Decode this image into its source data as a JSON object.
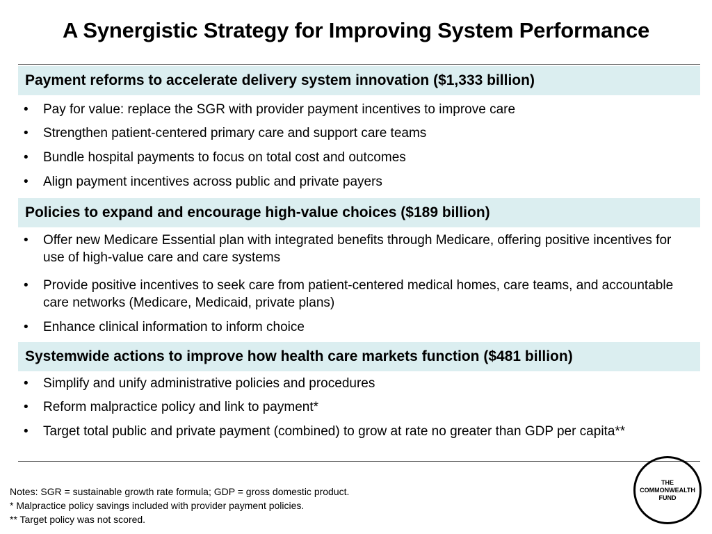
{
  "title": "A Synergistic Strategy for Improving System Performance",
  "sections": [
    {
      "header": "Payment reforms to accelerate delivery system innovation ($1,333 billion)",
      "bullets": [
        "Pay for value: replace the SGR with provider payment incentives to improve care",
        "Strengthen patient-centered primary care and support care teams",
        "Bundle hospital payments to focus on total cost and outcomes",
        "Align payment incentives across public and private payers"
      ]
    },
    {
      "header": "Policies to expand and encourage high-value choices ($189 billion)",
      "bullets": [
        "Offer new Medicare Essential plan with integrated benefits through Medicare, offering positive incentives for use of high-value care and care systems",
        "Provide positive incentives to seek care from patient-centered medical homes, care teams, and accountable care networks (Medicare, Medicaid, private plans)",
        "Enhance clinical information to inform choice"
      ]
    },
    {
      "header": "Systemwide actions to improve how health care markets function ($481 billion)",
      "bullets": [
        "Simplify and unify administrative policies and procedures",
        "Reform malpractice policy and link to payment*",
        "Target total public and private payment (combined) to grow at rate no greater than GDP per capita**"
      ]
    }
  ],
  "bullet_symbol": "•",
  "notes": [
    "Notes: SGR = sustainable growth rate formula; GDP = gross domestic product.",
    "* Malpractice policy savings included with provider payment policies.",
    "** Target policy was not scored."
  ],
  "logo": {
    "line1": "THE",
    "line2": "COMMONWEALTH",
    "line3": "FUND"
  },
  "colors": {
    "section_header_bg": "#dbeef0",
    "rule": "#555555",
    "text": "#000000"
  }
}
